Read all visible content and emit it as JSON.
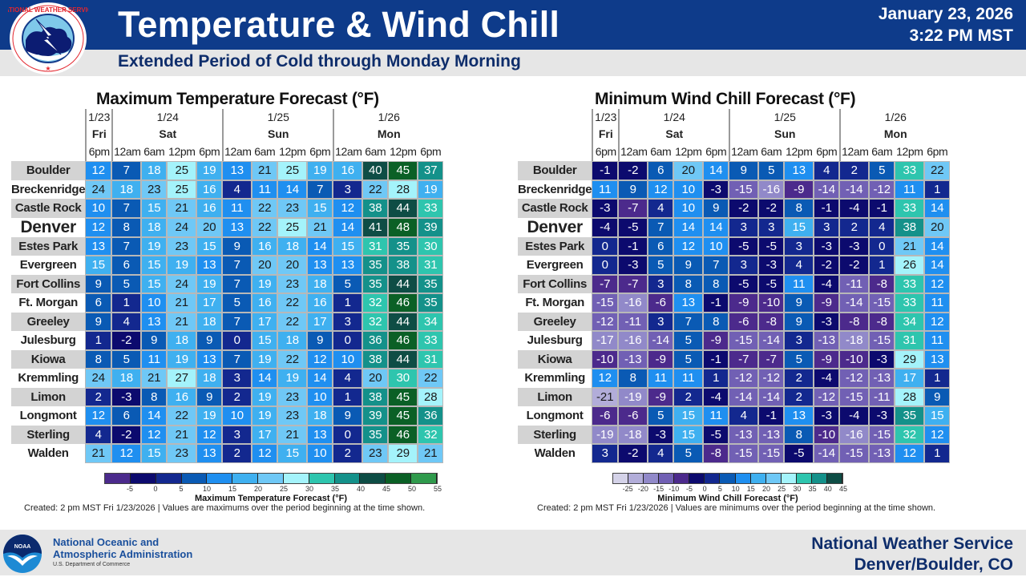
{
  "header": {
    "title": "Temperature & Wind Chill",
    "subtitle": "Extended Period of Cold through Monday Morning",
    "date": "January 23, 2026",
    "time": "3:22 PM MST",
    "logo_text": "NATIONAL WEATHER SERVICE"
  },
  "footer": {
    "agency_line1": "National Oceanic and",
    "agency_line2": "Atmospheric Administration",
    "department": "U.S. Department of Commerce",
    "office_line1": "National Weather Service",
    "office_line2": "Denver/Boulder, CO",
    "noaa_logo_text": "NOAA"
  },
  "columns": {
    "days": [
      {
        "date": "1/23",
        "name": "Fri",
        "span": 1
      },
      {
        "date": "1/24",
        "name": "Sat",
        "span": 4
      },
      {
        "date": "1/25",
        "name": "Sun",
        "span": 4
      },
      {
        "date": "1/26",
        "name": "Mon",
        "span": 4
      }
    ],
    "times": [
      "6pm",
      "12am",
      "6am",
      "12pm",
      "6pm",
      "12am",
      "6am",
      "12pm",
      "6pm",
      "12am",
      "6am",
      "12pm",
      "6pm"
    ]
  },
  "locations": [
    "Boulder",
    "Breckenridge",
    "Castle Rock",
    "Denver",
    "Estes Park",
    "Evergreen",
    "Fort Collins",
    "Ft. Morgan",
    "Greeley",
    "Julesburg",
    "Kiowa",
    "Kremmling",
    "Limon",
    "Longmont",
    "Sterling",
    "Walden"
  ],
  "chart_data": [
    {
      "type": "heatmap",
      "title": "Maximum Temperature Forecast (°F)",
      "legend_label": "Maximum Temperature Forecast (°F)",
      "note": "Created: 2 pm MST Fri 1/23/2026  |  Values are maximums over the period beginning at the time shown.",
      "x": [
        "Fri 1/23 6pm",
        "Sat 1/24 12am",
        "Sat 1/24 6am",
        "Sat 1/24 12pm",
        "Sat 1/24 6pm",
        "Sun 1/25 12am",
        "Sun 1/25 6am",
        "Sun 1/25 12pm",
        "Sun 1/25 6pm",
        "Mon 1/26 12am",
        "Mon 1/26 6am",
        "Mon 1/26 12pm",
        "Mon 1/26 6pm"
      ],
      "y": [
        "Boulder",
        "Breckenridge",
        "Castle Rock",
        "Denver",
        "Estes Park",
        "Evergreen",
        "Fort Collins",
        "Ft. Morgan",
        "Greeley",
        "Julesburg",
        "Kiowa",
        "Kremmling",
        "Limon",
        "Longmont",
        "Sterling",
        "Walden"
      ],
      "values": [
        [
          12,
          7,
          18,
          25,
          19,
          13,
          21,
          25,
          19,
          16,
          40,
          45,
          37
        ],
        [
          24,
          18,
          23,
          25,
          16,
          4,
          11,
          14,
          7,
          3,
          22,
          28,
          19
        ],
        [
          10,
          7,
          15,
          21,
          16,
          11,
          22,
          23,
          15,
          12,
          38,
          44,
          33
        ],
        [
          12,
          8,
          18,
          24,
          20,
          13,
          22,
          25,
          21,
          14,
          41,
          48,
          39
        ],
        [
          13,
          7,
          19,
          23,
          15,
          9,
          16,
          18,
          14,
          15,
          31,
          35,
          30
        ],
        [
          15,
          6,
          15,
          19,
          13,
          7,
          20,
          20,
          13,
          13,
          35,
          38,
          31
        ],
        [
          9,
          5,
          15,
          24,
          19,
          7,
          19,
          23,
          18,
          5,
          35,
          44,
          35
        ],
        [
          6,
          1,
          10,
          21,
          17,
          5,
          16,
          22,
          16,
          1,
          32,
          46,
          35
        ],
        [
          9,
          4,
          13,
          21,
          18,
          7,
          17,
          22,
          17,
          3,
          32,
          44,
          34
        ],
        [
          1,
          -2,
          9,
          18,
          9,
          0,
          15,
          18,
          9,
          0,
          36,
          46,
          33
        ],
        [
          8,
          5,
          11,
          19,
          13,
          7,
          19,
          22,
          12,
          10,
          38,
          44,
          31
        ],
        [
          24,
          18,
          21,
          27,
          18,
          3,
          14,
          19,
          14,
          4,
          20,
          30,
          22
        ],
        [
          2,
          -3,
          8,
          16,
          9,
          2,
          19,
          23,
          10,
          1,
          38,
          45,
          28
        ],
        [
          12,
          6,
          14,
          22,
          19,
          10,
          19,
          23,
          18,
          9,
          39,
          45,
          36
        ],
        [
          4,
          -2,
          12,
          21,
          12,
          3,
          17,
          21,
          13,
          0,
          35,
          46,
          32
        ],
        [
          21,
          12,
          15,
          23,
          13,
          2,
          12,
          15,
          10,
          2,
          23,
          29,
          21
        ]
      ],
      "scale": {
        "bins": [
          -10,
          -5,
          0,
          5,
          10,
          15,
          20,
          25,
          30,
          35,
          40,
          45,
          50,
          55
        ],
        "colors": [
          "#4b2a8c",
          "#0c0a6e",
          "#13288f",
          "#0a5ab4",
          "#1f8ff0",
          "#3fb0f0",
          "#6fc8f6",
          "#a4f3fb",
          "#2ec5ae",
          "#14918a",
          "#0e4d45",
          "#0b6026",
          "#2f9a4c"
        ],
        "tick_labels": [
          "-5",
          "0",
          "5",
          "10",
          "15",
          "20",
          "25",
          "30",
          "35",
          "40",
          "45",
          "50",
          "55"
        ]
      }
    },
    {
      "type": "heatmap",
      "title": "Minimum Wind Chill Forecast (°F)",
      "legend_label": "Minimum Wind Chill Forecast (°F)",
      "note": "Created: 2 pm MST Fri 1/23/2026  |  Values are minimums over the period beginning at the time shown.",
      "x": [
        "Fri 1/23 6pm",
        "Sat 1/24 12am",
        "Sat 1/24 6am",
        "Sat 1/24 12pm",
        "Sat 1/24 6pm",
        "Sun 1/25 12am",
        "Sun 1/25 6am",
        "Sun 1/25 12pm",
        "Sun 1/25 6pm",
        "Mon 1/26 12am",
        "Mon 1/26 6am",
        "Mon 1/26 12pm",
        "Mon 1/26 6pm"
      ],
      "y": [
        "Boulder",
        "Breckenridge",
        "Castle Rock",
        "Denver",
        "Estes Park",
        "Evergreen",
        "Fort Collins",
        "Ft. Morgan",
        "Greeley",
        "Julesburg",
        "Kiowa",
        "Kremmling",
        "Limon",
        "Longmont",
        "Sterling",
        "Walden"
      ],
      "values": [
        [
          -1,
          -2,
          6,
          20,
          14,
          9,
          5,
          13,
          4,
          2,
          5,
          33,
          22
        ],
        [
          11,
          9,
          12,
          10,
          -3,
          -15,
          -16,
          -9,
          -14,
          -14,
          -12,
          11,
          1
        ],
        [
          -3,
          -7,
          4,
          10,
          9,
          -2,
          -2,
          8,
          -1,
          -4,
          -1,
          33,
          14
        ],
        [
          -4,
          -5,
          7,
          14,
          14,
          3,
          3,
          15,
          3,
          2,
          4,
          38,
          20
        ],
        [
          0,
          -1,
          6,
          12,
          10,
          -5,
          -5,
          3,
          -3,
          -3,
          0,
          21,
          14
        ],
        [
          0,
          -3,
          5,
          9,
          7,
          3,
          -3,
          4,
          -2,
          -2,
          1,
          26,
          14
        ],
        [
          -7,
          -7,
          3,
          8,
          8,
          -5,
          -5,
          11,
          -4,
          -11,
          -8,
          33,
          12
        ],
        [
          -15,
          -16,
          -6,
          13,
          -1,
          -9,
          -10,
          9,
          -9,
          -14,
          -15,
          33,
          11
        ],
        [
          -12,
          -11,
          3,
          7,
          8,
          -6,
          -8,
          9,
          -3,
          -8,
          -8,
          34,
          12
        ],
        [
          -17,
          -16,
          -14,
          5,
          -9,
          -15,
          -14,
          3,
          -13,
          -18,
          -15,
          31,
          11
        ],
        [
          -10,
          -13,
          -9,
          5,
          -1,
          -7,
          -7,
          5,
          -9,
          -10,
          -3,
          29,
          13
        ],
        [
          12,
          8,
          11,
          11,
          1,
          -12,
          -12,
          2,
          -4,
          -12,
          -13,
          17,
          1
        ],
        [
          -21,
          -19,
          -9,
          2,
          -4,
          -14,
          -14,
          2,
          -12,
          -15,
          -11,
          28,
          9
        ],
        [
          -6,
          -6,
          5,
          15,
          11,
          4,
          -1,
          13,
          -3,
          -4,
          -3,
          35,
          15
        ],
        [
          -19,
          -18,
          -3,
          15,
          -5,
          -13,
          -13,
          8,
          -10,
          -16,
          -15,
          32,
          12
        ],
        [
          3,
          -2,
          4,
          5,
          -8,
          -15,
          -15,
          -5,
          -14,
          -15,
          -13,
          12,
          1
        ]
      ],
      "scale": {
        "bins": [
          -30,
          -25,
          -20,
          -15,
          -10,
          -5,
          0,
          5,
          10,
          15,
          20,
          25,
          30,
          35,
          40,
          45
        ],
        "colors": [
          "#d4d2e8",
          "#b2add9",
          "#9189c9",
          "#7160b4",
          "#4c2a8c",
          "#0c0a6e",
          "#13288f",
          "#0a5ab4",
          "#1f8ff0",
          "#3fb0f0",
          "#6fc8f6",
          "#a4f3fb",
          "#2ec5ae",
          "#14918a",
          "#0e4d45"
        ],
        "tick_labels": [
          "-25",
          "-20",
          "-15",
          "-10",
          "-5",
          "0",
          "5",
          "10",
          "15",
          "20",
          "25",
          "30",
          "35",
          "40",
          "45"
        ]
      }
    }
  ]
}
